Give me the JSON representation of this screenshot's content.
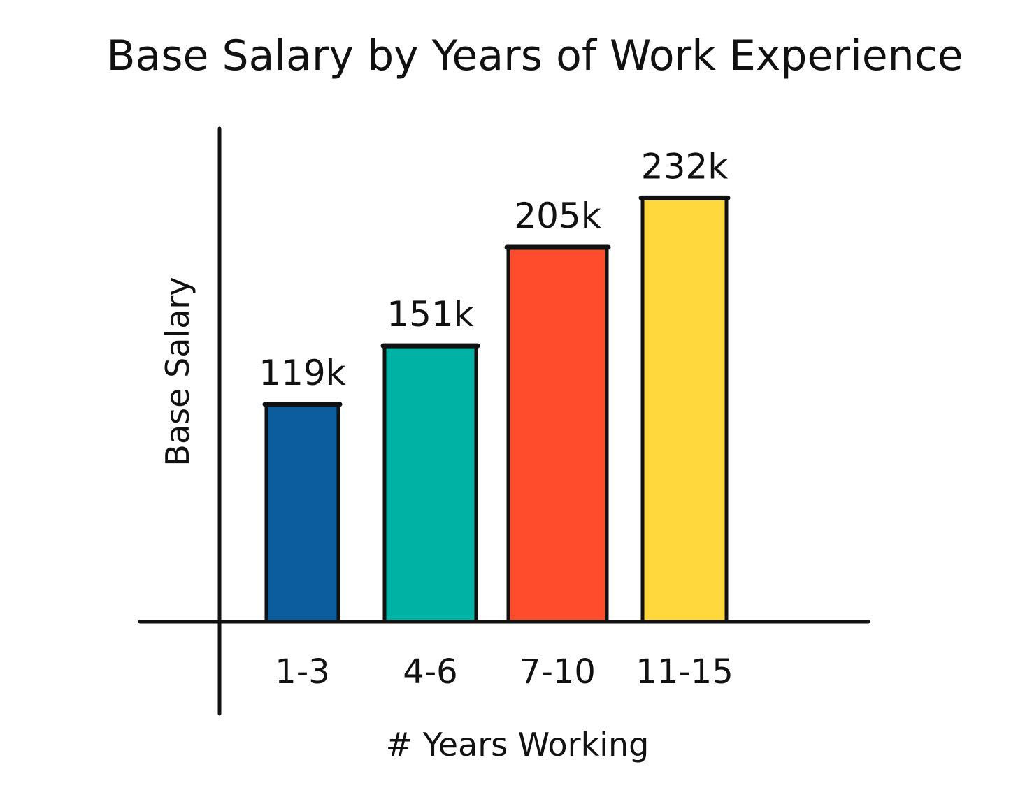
{
  "chart_data": {
    "type": "bar",
    "title": "Base Salary by Years of Work Experience",
    "xlabel": "# Years Working",
    "ylabel": "Base Salary",
    "categories": [
      "1-3",
      "4-6",
      "7-10",
      "11-15"
    ],
    "values": [
      119,
      151,
      205,
      232
    ],
    "value_labels": [
      "119k",
      "151k",
      "205k",
      "232k"
    ],
    "colors": [
      "#0b5d9e",
      "#00b2a4",
      "#ff4c2c",
      "#fed83d"
    ],
    "ylim": [
      0,
      270
    ],
    "grid": false,
    "legend": "none"
  }
}
